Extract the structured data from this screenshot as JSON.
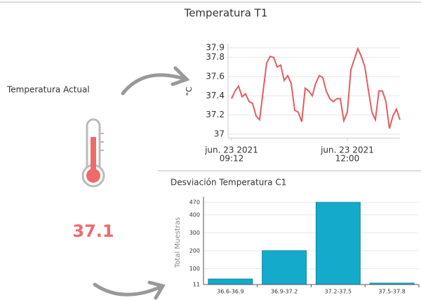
{
  "title": "Temperatura T1",
  "current": {
    "label": "Temperatura Actual",
    "value": "37.1"
  },
  "chart_data": [
    {
      "type": "line",
      "y_label": "°C",
      "color": "#e35d62",
      "categories": [
        "jun. 23 2021 09:12",
        null,
        null,
        null,
        null,
        null,
        null,
        null,
        null,
        null,
        null,
        null,
        null,
        null,
        null,
        null,
        null,
        null,
        null,
        null,
        null,
        null,
        null,
        null,
        null,
        null,
        null,
        null,
        null,
        null,
        null,
        null,
        null,
        "jun. 23 2021 12:00",
        null,
        null,
        null,
        null,
        null,
        null,
        null,
        null,
        null,
        null,
        null,
        null,
        null,
        null,
        null
      ],
      "values": [
        37.37,
        37.45,
        37.5,
        37.39,
        37.42,
        37.34,
        37.32,
        37.19,
        37.15,
        37.45,
        37.74,
        37.81,
        37.8,
        37.7,
        37.72,
        37.56,
        37.61,
        37.53,
        37.25,
        37.23,
        37.13,
        37.48,
        37.45,
        37.4,
        37.53,
        37.61,
        37.59,
        37.45,
        37.37,
        37.34,
        37.37,
        37.37,
        37.14,
        37.23,
        37.67,
        37.78,
        37.89,
        37.81,
        37.7,
        37.46,
        37.23,
        37.15,
        37.45,
        37.45,
        37.34,
        37.06,
        37.19,
        37.26,
        37.15
      ],
      "ylim": [
        36.96,
        37.94
      ],
      "yticks": [
        37,
        37.2,
        37.4,
        37.6,
        37.8,
        37.9
      ],
      "grid": true
    },
    {
      "type": "bar",
      "title": "Desviación Temperatura C1",
      "y_label": "Total Muestras",
      "color": "#14aacb",
      "categories": [
        "36.6-36.9",
        "36.9-37.2",
        "37.2-37.5",
        "37.5-37.8"
      ],
      "values": [
        42,
        200,
        470,
        19
      ],
      "ylim": [
        11,
        470
      ],
      "yticks": [
        11,
        100,
        200,
        300,
        400,
        470
      ],
      "grid": true
    }
  ]
}
